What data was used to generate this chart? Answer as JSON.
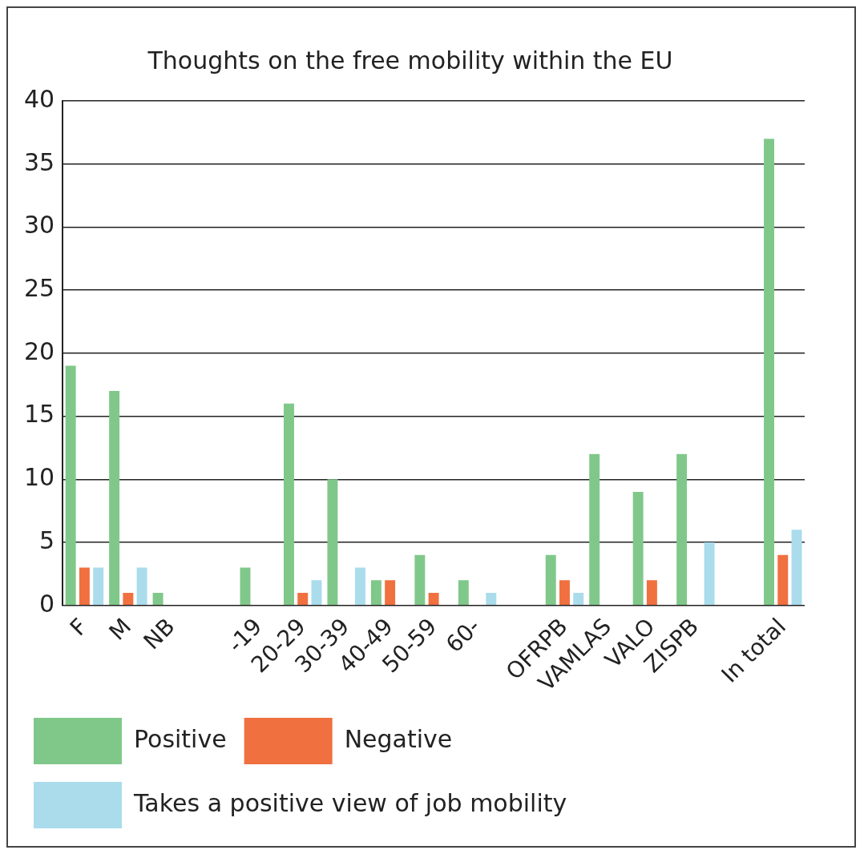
{
  "chart_data": {
    "type": "bar",
    "title": "Thoughts on the free mobility within the EU",
    "categories": [
      "F",
      "M",
      "NB",
      null,
      "-19",
      "20-29",
      "30-39",
      "40-49",
      "50-59",
      "60-",
      null,
      "OFRPB",
      "VAMLAS",
      "VALO",
      "ZISPB",
      null,
      "In total"
    ],
    "series": [
      {
        "name": "Positive",
        "color": "#80c88a",
        "values": [
          19,
          17,
          1,
          null,
          3,
          16,
          10,
          2,
          4,
          2,
          null,
          4,
          12,
          9,
          12,
          null,
          37
        ]
      },
      {
        "name": "Negative",
        "color": "#f07040",
        "values": [
          3,
          1,
          0,
          null,
          0,
          1,
          0,
          2,
          1,
          0,
          null,
          2,
          0,
          2,
          0,
          null,
          4
        ]
      },
      {
        "name": "Takes a positive view of job mobility",
        "color": "#aadcec",
        "values": [
          3,
          3,
          0,
          null,
          0,
          2,
          3,
          0,
          0,
          1,
          null,
          1,
          0,
          0,
          5,
          null,
          6
        ]
      }
    ],
    "ylim": [
      0,
      40
    ],
    "yticks": [
      0,
      5,
      10,
      15,
      20,
      25,
      30,
      35,
      40
    ],
    "grid": "y",
    "legend": "bottom"
  }
}
